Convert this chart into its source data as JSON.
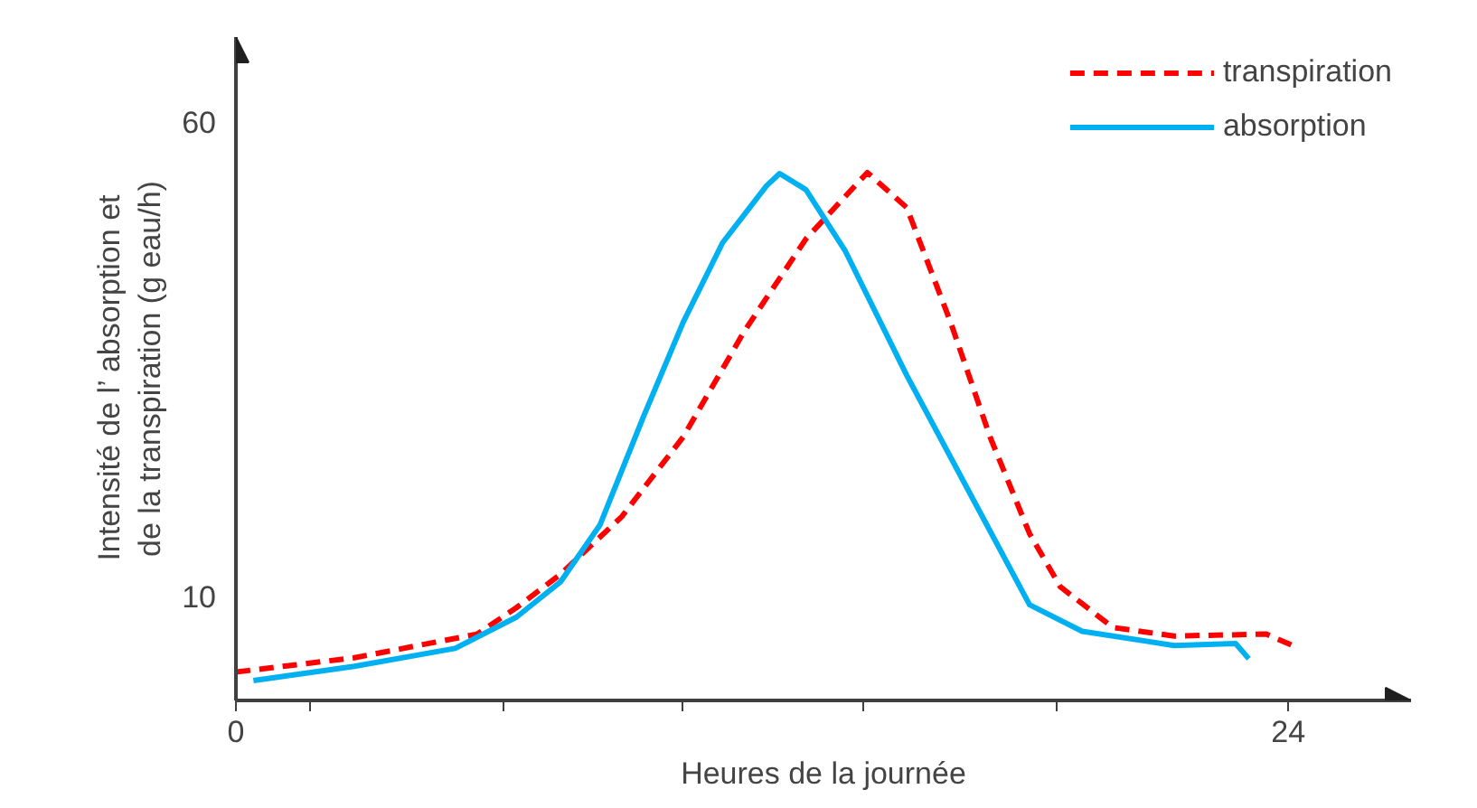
{
  "chart_data": {
    "type": "line",
    "xlabel": "Heures de la journée",
    "ylabel": "Intensité de l’   absorption et\nde la transpiration (g eau/h)",
    "xlim": [
      0,
      26.8
    ],
    "ylim": [
      -1,
      69
    ],
    "xticks": [
      0,
      {
        "value": 1.7,
        "label": null
      },
      {
        "value": 6.1,
        "label": null
      },
      {
        "value": 10.2,
        "label": null
      },
      {
        "value": 14.3,
        "label": null
      },
      {
        "value": 18.7,
        "label": null
      },
      24
    ],
    "yticks": [
      10,
      60
    ],
    "grid": false,
    "legend": "top right",
    "series": [
      {
        "name": "transpiration",
        "color": "#ff0000",
        "line_style": "dashed",
        "x": [
          0,
          2.7,
          5.5,
          6.4,
          7.4,
          8.8,
          10.2,
          11.6,
          13.0,
          14.4,
          15.3,
          16.3,
          17.2,
          18.1,
          18.8,
          20,
          21.4,
          23.5,
          24.1
        ],
        "values": [
          2.0,
          3.5,
          6.0,
          8.8,
          12.3,
          18.4,
          26.8,
          38,
          47.7,
          54.7,
          51,
          38.9,
          26.8,
          16.6,
          11,
          6.7,
          5.8,
          6.0,
          4.8
        ]
      },
      {
        "name": "absorption",
        "color": "#00b0f0",
        "line_style": "solid",
        "x": [
          0.4,
          2.7,
          5.0,
          6.4,
          7.4,
          8.3,
          9.3,
          10.2,
          11.1,
          12.1,
          12.4,
          13.0,
          13.9,
          15.3,
          16.7,
          18.1,
          19.3,
          21.4,
          22.8,
          23.1
        ],
        "values": [
          1.1,
          2.6,
          4.5,
          7.8,
          11.5,
          17.5,
          29,
          38.9,
          47.3,
          53.3,
          54.6,
          52.9,
          46.4,
          33.3,
          21.2,
          9.1,
          6.3,
          4.8,
          5.0,
          3.4
        ]
      }
    ]
  }
}
